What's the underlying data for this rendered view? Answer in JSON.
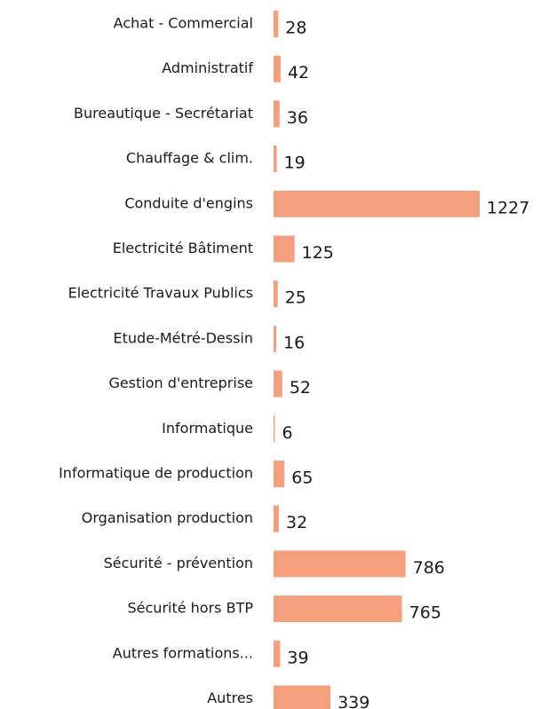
{
  "chart_data": {
    "type": "bar",
    "orientation": "horizontal",
    "categories": [
      "Achat - Commercial",
      "Administratif",
      "Bureautique - Secrétariat",
      "Chauffage & clim.",
      "Conduite d'engins",
      "Electricité Bâtiment",
      "Electricité Travaux Publics",
      "Etude-Métré-Dessin",
      "Gestion d'entreprise",
      "Informatique",
      "Informatique de production",
      "Organisation production",
      "Sécurité - prévention",
      "Sécurité hors BTP",
      "Autres formations...",
      "Autres"
    ],
    "values": [
      28,
      42,
      36,
      19,
      1227,
      125,
      25,
      16,
      52,
      6,
      65,
      32,
      786,
      765,
      39,
      339
    ],
    "color": "#f4a07f"
  }
}
